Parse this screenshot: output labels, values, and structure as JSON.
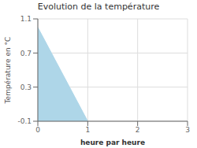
{
  "chart_data": {
    "type": "area",
    "title": "Evolution de la température",
    "xlabel": "heure par heure",
    "ylabel": "Température en °C",
    "x": [
      0,
      1
    ],
    "values": [
      1.0,
      -0.1
    ],
    "color": "#aed6e8",
    "xlim": [
      0,
      3
    ],
    "ylim": [
      -0.1,
      1.1
    ],
    "xticks": [
      0,
      1,
      2,
      3
    ],
    "yticks": [
      -0.1,
      0.3,
      0.7,
      1.1
    ],
    "grid": true
  }
}
